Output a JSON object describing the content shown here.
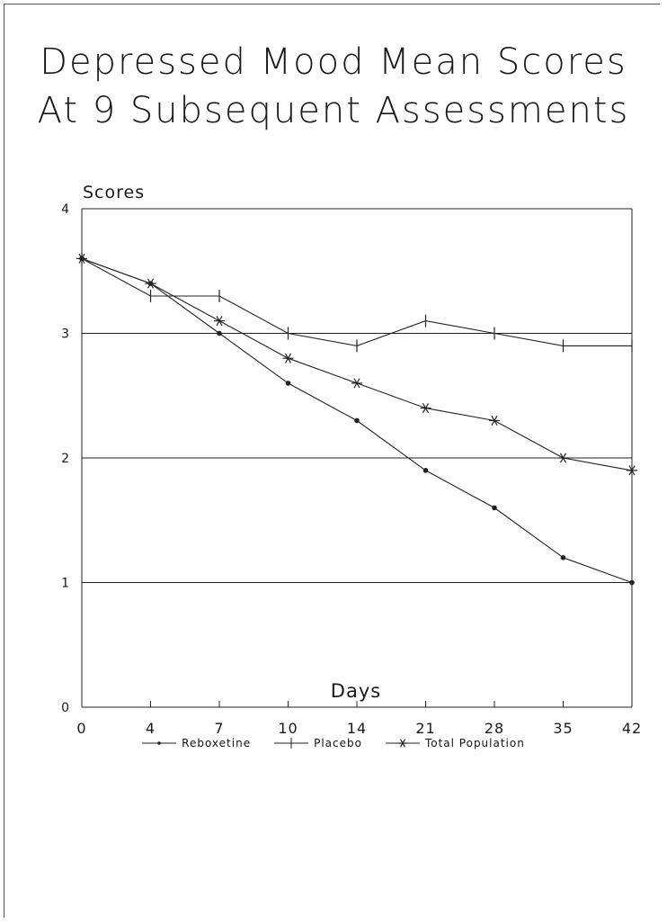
{
  "chart_data": {
    "type": "line",
    "title": [
      "Depressed Mood Mean Scores",
      "At 9 Subsequent Assessments"
    ],
    "xlabel": "Days",
    "ylabel": "Scores",
    "categories": [
      "0",
      "4",
      "7",
      "10",
      "14",
      "21",
      "28",
      "35",
      "42"
    ],
    "ylim": [
      0,
      4
    ],
    "yticks": [
      "0",
      "1",
      "2",
      "3",
      "4"
    ],
    "grid": "horizontal at 1, 2, 3",
    "legend_position": "bottom",
    "series": [
      {
        "name": "Reboxetine",
        "marker": "dot",
        "values": [
          3.6,
          3.4,
          3.0,
          2.6,
          2.3,
          1.9,
          1.6,
          1.2,
          1.0
        ]
      },
      {
        "name": "Placebo",
        "marker": "plus",
        "values": [
          3.6,
          3.3,
          3.3,
          3.0,
          2.9,
          3.1,
          3.0,
          2.9,
          2.9
        ]
      },
      {
        "name": "Total Population",
        "marker": "asterisk",
        "values": [
          3.6,
          3.4,
          3.1,
          2.8,
          2.6,
          2.4,
          2.3,
          2.0,
          1.9
        ]
      }
    ]
  }
}
